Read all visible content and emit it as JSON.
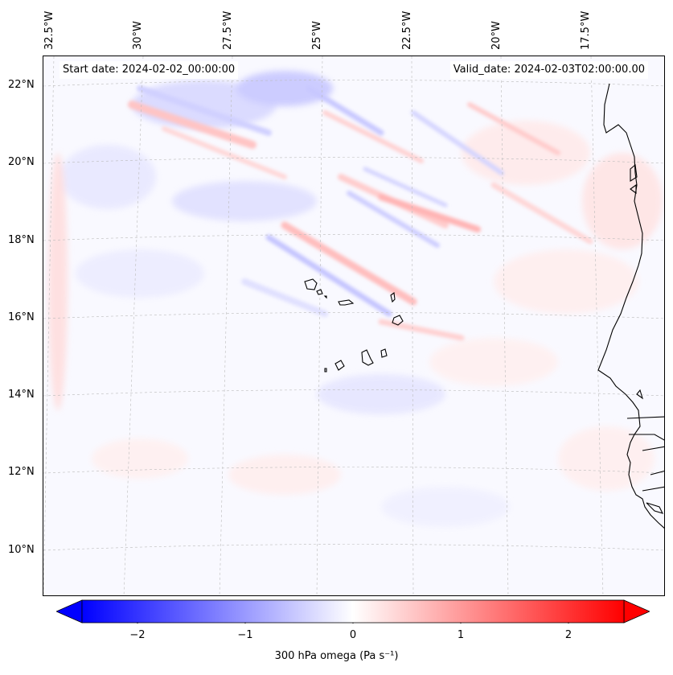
{
  "map": {
    "start_date": "Start date: 2024-02-02_00:00:00",
    "valid_date": "Valid_date: 2024-02-03T02:00:00.00",
    "lon_labels": [
      "32.5°W",
      "30°W",
      "27.5°W",
      "25°W",
      "22.5°W",
      "20°W",
      "17.5°W"
    ],
    "lat_labels": [
      "22°N",
      "20°N",
      "18°N",
      "16°N",
      "14°N",
      "12°N",
      "10°N"
    ],
    "gridlines": true,
    "field": "300 hPa omega",
    "colors": {
      "negative": "#0000ff",
      "zero": "#ffffff",
      "positive": "#ff0000",
      "coast": "#000000"
    }
  },
  "colorbar": {
    "label": "300 hPa omega (Pa s⁻¹)",
    "ticks": [
      "−2",
      "−1",
      "0",
      "1",
      "2"
    ],
    "tick_values": [
      -2,
      -1,
      0,
      1,
      2
    ],
    "range": [
      -2.5,
      2.5
    ],
    "extend": "both",
    "colormap": "bwr"
  }
}
